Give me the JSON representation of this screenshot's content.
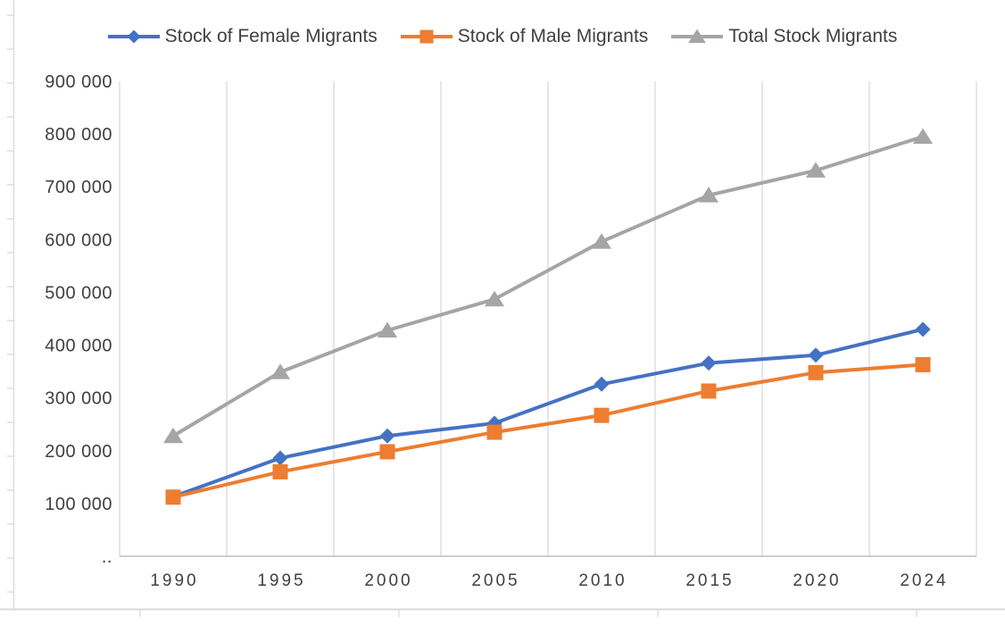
{
  "chart_data": {
    "type": "line",
    "title": "",
    "xlabel": "",
    "ylabel": "",
    "categories": [
      "1990",
      "1995",
      "2000",
      "2005",
      "2010",
      "2015",
      "2020",
      "2024"
    ],
    "series": [
      {
        "name": "Stock of Female Migrants",
        "color": "#4472C4",
        "marker": "diamond",
        "values": [
          113000,
          186000,
          228000,
          252000,
          326000,
          366000,
          381000,
          430000
        ]
      },
      {
        "name": "Stock of Male Migrants",
        "color": "#ED7D31",
        "marker": "square",
        "values": [
          112000,
          160000,
          198000,
          235000,
          267000,
          313000,
          348000,
          363000
        ]
      },
      {
        "name": "Total Stock Migrants",
        "color": "#A5A5A5",
        "marker": "triangle",
        "values": [
          228000,
          349000,
          428000,
          487000,
          596000,
          684000,
          731000,
          795000
        ]
      }
    ],
    "ylim": [
      0,
      900000
    ],
    "ytick_values": [
      900000,
      800000,
      700000,
      600000,
      500000,
      400000,
      300000,
      200000,
      100000,
      0
    ],
    "ytick_labels": [
      "900 000",
      "800 000",
      "700 000",
      "600 000",
      "500 000",
      "400 000",
      "300 000",
      "200 000",
      "100 000",
      ".."
    ],
    "grid": "vertical-only",
    "legend_position": "top-center"
  },
  "colors": {
    "gridline": "#D9D9D9",
    "axis_line": "#BFBFBF",
    "sheet_line": "#D9D9D9",
    "text": "#404040",
    "background": "#FFFFFF"
  }
}
